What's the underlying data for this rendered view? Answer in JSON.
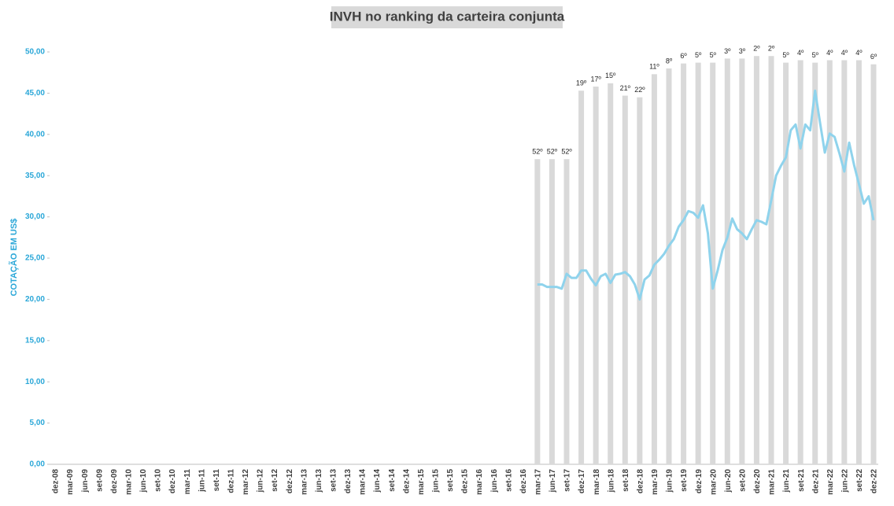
{
  "chart_data": {
    "type": "bar_line",
    "title": "INVH no ranking da carteira conjunta",
    "y_label": "COTAÇÃO EM US$",
    "ylim": [
      0,
      50
    ],
    "yticks": [
      {
        "value": 0,
        "label": "0,00"
      },
      {
        "value": 5,
        "label": "5,00"
      },
      {
        "value": 10,
        "label": "10,00"
      },
      {
        "value": 15,
        "label": "15,00"
      },
      {
        "value": 20,
        "label": "20,00"
      },
      {
        "value": 25,
        "label": "25,00"
      },
      {
        "value": 30,
        "label": "30,00"
      },
      {
        "value": 35,
        "label": "35,00"
      },
      {
        "value": 40,
        "label": "40,00"
      },
      {
        "value": 45,
        "label": "45,00"
      },
      {
        "value": 50,
        "label": "50,00"
      }
    ],
    "categories": [
      "dez-08",
      null,
      null,
      "mar-09",
      null,
      null,
      "jun-09",
      null,
      null,
      "set-09",
      null,
      null,
      "dez-09",
      null,
      null,
      "mar-10",
      null,
      null,
      "jun-10",
      null,
      null,
      "set-10",
      null,
      null,
      "dez-10",
      null,
      null,
      "mar-11",
      null,
      null,
      "jun-11",
      null,
      null,
      "set-11",
      null,
      null,
      "dez-11",
      null,
      null,
      "mar-12",
      null,
      null,
      "jun-12",
      null,
      null,
      "set-12",
      null,
      null,
      "dez-12",
      null,
      null,
      "mar-13",
      null,
      null,
      "jun-13",
      null,
      null,
      "set-13",
      null,
      null,
      "dez-13",
      null,
      null,
      "mar-14",
      null,
      null,
      "jun-14",
      null,
      null,
      "set-14",
      null,
      null,
      "dez-14",
      null,
      null,
      "mar-15",
      null,
      null,
      "jun-15",
      null,
      null,
      "set-15",
      null,
      null,
      "dez-15",
      null,
      null,
      "mar-16",
      null,
      null,
      "jun-16",
      null,
      null,
      "set-16",
      null,
      null,
      "dez-16",
      null,
      null,
      "mar-17",
      null,
      null,
      "jun-17",
      null,
      null,
      "set-17",
      null,
      null,
      "dez-17",
      null,
      null,
      "mar-18",
      null,
      null,
      "jun-18",
      null,
      null,
      "set-18",
      null,
      null,
      "dez-18",
      null,
      null,
      "mar-19",
      null,
      null,
      "jun-19",
      null,
      null,
      "set-19",
      null,
      null,
      "dez-19",
      null,
      null,
      "mar-20",
      null,
      null,
      "jun-20",
      null,
      null,
      "set-20",
      null,
      null,
      "dez-20",
      null,
      null,
      "mar-21",
      null,
      null,
      "jun-21",
      null,
      null,
      "set-21",
      null,
      null,
      "dez-21",
      null,
      null,
      "mar-22",
      null,
      null,
      "jun-22",
      null,
      null,
      "set-22",
      null,
      null,
      "dez-22"
    ],
    "series": [
      {
        "type": "bar",
        "color": "#d9d9d9",
        "values": [
          null,
          null,
          null,
          null,
          null,
          null,
          null,
          null,
          null,
          null,
          null,
          null,
          null,
          null,
          null,
          null,
          null,
          null,
          null,
          null,
          null,
          null,
          null,
          null,
          null,
          null,
          null,
          null,
          null,
          null,
          null,
          null,
          null,
          null,
          null,
          null,
          null,
          null,
          null,
          null,
          null,
          null,
          null,
          null,
          null,
          null,
          null,
          null,
          null,
          null,
          null,
          null,
          null,
          null,
          null,
          null,
          null,
          null,
          null,
          null,
          null,
          null,
          null,
          null,
          null,
          null,
          null,
          null,
          null,
          null,
          null,
          null,
          null,
          null,
          null,
          null,
          null,
          null,
          null,
          null,
          null,
          null,
          null,
          null,
          null,
          null,
          null,
          null,
          null,
          null,
          null,
          null,
          null,
          null,
          null,
          null,
          null,
          null,
          null,
          37,
          null,
          null,
          37,
          null,
          null,
          37,
          null,
          null,
          45.3,
          null,
          null,
          45.8,
          null,
          null,
          46.2,
          null,
          null,
          44.7,
          null,
          null,
          44.5,
          null,
          null,
          47.3,
          null,
          null,
          48,
          null,
          null,
          48.6,
          null,
          null,
          48.7,
          null,
          null,
          48.7,
          null,
          null,
          49.2,
          null,
          null,
          49.2,
          null,
          null,
          49.5,
          null,
          null,
          49.5,
          null,
          null,
          48.7,
          null,
          null,
          49,
          null,
          null,
          48.7,
          null,
          null,
          49,
          null,
          null,
          49,
          null,
          null,
          49,
          null,
          null,
          48.5
        ],
        "rank_labels": [
          null,
          null,
          null,
          null,
          null,
          null,
          null,
          null,
          null,
          null,
          null,
          null,
          null,
          null,
          null,
          null,
          null,
          null,
          null,
          null,
          null,
          null,
          null,
          null,
          null,
          null,
          null,
          null,
          null,
          null,
          null,
          null,
          null,
          null,
          null,
          null,
          null,
          null,
          null,
          null,
          null,
          null,
          null,
          null,
          null,
          null,
          null,
          null,
          null,
          null,
          null,
          null,
          null,
          null,
          null,
          null,
          null,
          null,
          null,
          null,
          null,
          null,
          null,
          null,
          null,
          null,
          null,
          null,
          null,
          null,
          null,
          null,
          null,
          null,
          null,
          null,
          null,
          null,
          null,
          null,
          null,
          null,
          null,
          null,
          null,
          null,
          null,
          null,
          null,
          null,
          null,
          null,
          null,
          null,
          null,
          null,
          null,
          null,
          null,
          "52º",
          null,
          null,
          "52º",
          null,
          null,
          "52º",
          null,
          null,
          "19º",
          null,
          null,
          "17º",
          null,
          null,
          "15º",
          null,
          null,
          "21º",
          null,
          null,
          "22º",
          null,
          null,
          "11º",
          null,
          null,
          "8º",
          null,
          null,
          "6º",
          null,
          null,
          "5º",
          null,
          null,
          "5º",
          null,
          null,
          "3º",
          null,
          null,
          "3º",
          null,
          null,
          "2º",
          null,
          null,
          "2º",
          null,
          null,
          "5º",
          null,
          null,
          "4º",
          null,
          null,
          "5º",
          null,
          null,
          "4º",
          null,
          null,
          "4º",
          null,
          null,
          "4º",
          null,
          null,
          "6º"
        ]
      },
      {
        "type": "line",
        "color": "#8fd3ec",
        "values": [
          null,
          null,
          null,
          null,
          null,
          null,
          null,
          null,
          null,
          null,
          null,
          null,
          null,
          null,
          null,
          null,
          null,
          null,
          null,
          null,
          null,
          null,
          null,
          null,
          null,
          null,
          null,
          null,
          null,
          null,
          null,
          null,
          null,
          null,
          null,
          null,
          null,
          null,
          null,
          null,
          null,
          null,
          null,
          null,
          null,
          null,
          null,
          null,
          null,
          null,
          null,
          null,
          null,
          null,
          null,
          null,
          null,
          null,
          null,
          null,
          null,
          null,
          null,
          null,
          null,
          null,
          null,
          null,
          null,
          null,
          null,
          null,
          null,
          null,
          null,
          null,
          null,
          null,
          null,
          null,
          null,
          null,
          null,
          null,
          null,
          null,
          null,
          null,
          null,
          null,
          null,
          null,
          null,
          null,
          null,
          null,
          null,
          null,
          null,
          21.8,
          21.8,
          21.5,
          21.5,
          21.5,
          21.3,
          23.1,
          22.6,
          22.6,
          23.5,
          23.5,
          22.5,
          21.7,
          22.8,
          23.1,
          22.0,
          23.0,
          23.1,
          23.3,
          22.8,
          21.8,
          20.0,
          22.4,
          22.9,
          24.2,
          24.8,
          25.5,
          26.5,
          27.3,
          28.8,
          29.6,
          30.7,
          30.5,
          29.9,
          31.4,
          28.0,
          21.3,
          23.5,
          26.0,
          27.5,
          29.8,
          28.5,
          28.0,
          27.3,
          28.5,
          29.6,
          29.4,
          29.1,
          32.0,
          35.0,
          36.2,
          37.2,
          40.5,
          41.2,
          38.3,
          41.2,
          40.5,
          45.3,
          41.5,
          37.8,
          40.1,
          39.7,
          37.7,
          35.5,
          39.0,
          36.3,
          34.0,
          31.6,
          32.5,
          29.6
        ]
      }
    ]
  }
}
